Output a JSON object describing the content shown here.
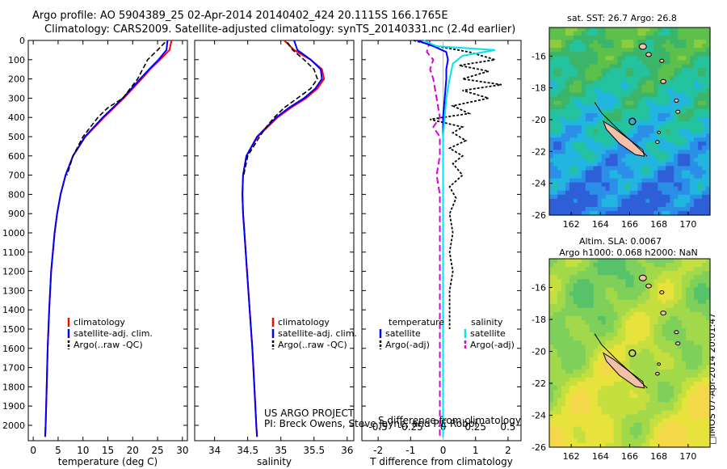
{
  "header": {
    "title_line1": "Argo profile: AO 5904389_25 02-Apr-2014 20140402_424 20.1115S 166.1765E",
    "title_line2": "Climatology: CARS2009. Satellite-adjusted climatology: synTS_20140331.nc (2.4d earlier)"
  },
  "credits": {
    "project": "US ARGO PROJECT",
    "pi": "PI: Breck Owens, Steve Jayne, and P.E Robbi"
  },
  "stamp": "□IMOS 07-Apr-2014 20:01:47",
  "colors": {
    "climatology": "#ff0000",
    "satellite_adj": "#0000ff",
    "argo": "#000000",
    "diff_t_sat": "#0000ff",
    "diff_s_sat": "#00e5ee",
    "diff_s_argo": "#dd00dd",
    "sst_map": "#34b26a",
    "sla_map": "#9ad24a",
    "land": "#f5c0a8"
  },
  "chart_data": [
    {
      "id": "temperature",
      "type": "line",
      "xlabel": "temperature (deg C)",
      "ylabel": "",
      "xlim": [
        -1,
        31
      ],
      "ylim": [
        2080,
        0
      ],
      "xticks": [
        0,
        5,
        10,
        15,
        20,
        25,
        30
      ],
      "yticks": [
        0,
        100,
        200,
        300,
        400,
        500,
        600,
        700,
        800,
        900,
        1000,
        1100,
        1200,
        1300,
        1400,
        1500,
        1600,
        1700,
        1800,
        1900,
        2000
      ],
      "legend": [
        "climatology",
        "satellite-adj. clim.",
        "Argo(..raw -QC)"
      ],
      "series": [
        {
          "name": "climatology",
          "color_key": "climatology",
          "depth": [
            0,
            50,
            100,
            150,
            200,
            300,
            400,
            500,
            600,
            700,
            800,
            900,
            1000,
            1200,
            1400,
            1600,
            1800,
            2000,
            2060
          ],
          "values": [
            27.8,
            27.4,
            25.5,
            23.5,
            21.8,
            18.2,
            14.2,
            10.5,
            8.0,
            6.5,
            5.5,
            4.8,
            4.3,
            3.6,
            3.2,
            2.9,
            2.7,
            2.5,
            2.4
          ]
        },
        {
          "name": "satellite-adj. clim.",
          "color_key": "satellite_adj",
          "depth": [
            0,
            50,
            100,
            150,
            200,
            300,
            400,
            500,
            600,
            700,
            800,
            900,
            1000,
            1200,
            1400,
            1600,
            1800,
            2000,
            2060
          ],
          "values": [
            27.0,
            26.8,
            25.2,
            23.3,
            21.5,
            18.0,
            14.0,
            10.4,
            8.0,
            6.5,
            5.5,
            4.8,
            4.3,
            3.6,
            3.2,
            2.9,
            2.7,
            2.5,
            2.4
          ]
        },
        {
          "name": "Argo(..raw -QC)",
          "color_key": "argo",
          "depth": [
            10,
            50,
            100,
            150,
            200,
            250,
            300,
            350,
            400,
            450,
            500,
            550,
            600,
            700
          ],
          "values": [
            26.5,
            25.0,
            23.0,
            22.0,
            21.0,
            19.5,
            18.0,
            15.0,
            13.0,
            11.5,
            10.0,
            9.0,
            8.0,
            6.8
          ]
        }
      ]
    },
    {
      "id": "salinity",
      "type": "line",
      "xlabel": "salinity",
      "ylabel": "",
      "xlim": [
        33.7,
        36.1
      ],
      "ylim": [
        2080,
        0
      ],
      "xticks": [
        34,
        34.5,
        35,
        35.5,
        36
      ],
      "legend": [
        "climatology",
        "satellite-adj. clim.",
        "Argo(..raw -QC)"
      ],
      "series": [
        {
          "name": "climatology",
          "color_key": "climatology",
          "depth": [
            0,
            50,
            100,
            150,
            200,
            250,
            300,
            350,
            400,
            500,
            600,
            700,
            800,
            900,
            1000,
            1200,
            1400,
            1600,
            1800,
            2000,
            2060
          ],
          "values": [
            35.05,
            35.2,
            35.45,
            35.62,
            35.65,
            35.55,
            35.38,
            35.15,
            34.95,
            34.65,
            34.48,
            34.43,
            34.42,
            34.43,
            34.45,
            34.49,
            34.53,
            34.57,
            34.6,
            34.63,
            34.64
          ]
        },
        {
          "name": "satellite-adj. clim.",
          "color_key": "satellite_adj",
          "depth": [
            0,
            50,
            100,
            150,
            200,
            250,
            300,
            350,
            400,
            500,
            600,
            700,
            800,
            900,
            1000,
            1200,
            1400,
            1600,
            1800,
            2000,
            2060
          ],
          "values": [
            35.2,
            35.25,
            35.45,
            35.6,
            35.62,
            35.52,
            35.35,
            35.12,
            34.93,
            34.64,
            34.48,
            34.43,
            34.42,
            34.43,
            34.45,
            34.49,
            34.53,
            34.57,
            34.6,
            34.63,
            34.64
          ]
        },
        {
          "name": "Argo(..raw -QC)",
          "color_key": "argo",
          "depth": [
            10,
            50,
            100,
            150,
            200,
            250,
            300,
            350,
            400,
            450,
            500,
            600,
            700
          ],
          "values": [
            35.1,
            35.18,
            35.35,
            35.5,
            35.55,
            35.45,
            35.25,
            35.05,
            34.9,
            34.78,
            34.68,
            34.5,
            34.44
          ]
        }
      ]
    },
    {
      "id": "difference",
      "type": "line",
      "xlabel": "T difference from climatology",
      "top_label": "S difference from climatology",
      "xlim": [
        -2.5,
        2.4
      ],
      "ylim": [
        2080,
        0
      ],
      "xticks": [
        -2,
        -1,
        0,
        1,
        2
      ],
      "top_ticks": [
        "-0.5",
        "-0.25",
        "0",
        "0.25",
        "0.5"
      ],
      "legend_headers": [
        "temperature",
        "salinity"
      ],
      "legend": [
        "satellite",
        "Argo(-adj)",
        "satellite",
        "Argo(-adj)"
      ],
      "series": [
        {
          "name": "satellite (temperature)",
          "color_key": "diff_t_sat",
          "depth": [
            0,
            30,
            60,
            100,
            150,
            200,
            300,
            400,
            500,
            600,
            800,
            1000,
            1500,
            2060
          ],
          "values": [
            -0.8,
            -0.3,
            0.1,
            0.15,
            0.1,
            0.1,
            0.05,
            0.0,
            0.0,
            0.0,
            0.0,
            0.0,
            0.0,
            0.0
          ]
        },
        {
          "name": "satellite (salinity)",
          "color_key": "diff_s_sat",
          "depth": [
            0,
            30,
            50,
            80,
            120,
            200,
            300,
            400,
            500,
            600,
            800,
            1000,
            1500,
            2060
          ],
          "values": [
            -0.6,
            -0.2,
            1.6,
            0.6,
            0.3,
            0.2,
            0.1,
            0.05,
            0.0,
            0.0,
            0.0,
            0.0,
            0.0,
            0.0
          ]
        },
        {
          "name": "Argo(-adj) (temperature)",
          "color_key": "argo",
          "depth": [
            0,
            30,
            60,
            100,
            130,
            160,
            200,
            230,
            260,
            300,
            340,
            380,
            410,
            450,
            480,
            520,
            560,
            600,
            640,
            700,
            760,
            820,
            900,
            1000,
            1100,
            1200,
            1300,
            1400,
            1500
          ],
          "values": [
            -0.9,
            -0.2,
            0.8,
            1.6,
            0.5,
            1.4,
            0.6,
            1.8,
            0.6,
            1.4,
            0.3,
            0.8,
            -0.4,
            0.6,
            0.3,
            0.7,
            0.2,
            0.6,
            0.3,
            0.6,
            0.2,
            0.4,
            0.2,
            0.3,
            0.2,
            0.3,
            0.2,
            0.2,
            0.2
          ]
        },
        {
          "name": "Argo(-adj) (salinity)",
          "color_key": "diff_s_argo",
          "depth": [
            0,
            60,
            100,
            150,
            200,
            300,
            400,
            450,
            500,
            600,
            700,
            800,
            1000,
            1500,
            2060
          ],
          "values": [
            -0.4,
            -0.5,
            -0.3,
            -0.4,
            -0.3,
            -0.2,
            -0.1,
            -0.3,
            -0.1,
            -0.1,
            -0.2,
            -0.1,
            -0.1,
            -0.1,
            -0.1
          ]
        }
      ]
    },
    {
      "id": "sst_map",
      "type": "heatmap",
      "title": "sat. SST: 26.7  Argo: 26.8",
      "xlim": [
        160.5,
        171.5
      ],
      "ylim": [
        -26,
        -14.2
      ],
      "xticks": [
        162,
        164,
        166,
        168,
        170
      ],
      "yticks": [
        -16,
        -18,
        -20,
        -22,
        -24,
        -26
      ],
      "float_position": {
        "lon": 166.18,
        "lat": -20.11
      }
    },
    {
      "id": "sla_map",
      "type": "heatmap",
      "title_line1": "Altim. SLA: 0.0067",
      "title_line2": "Argo h1000: 0.068  h2000: NaN",
      "xlim": [
        160.5,
        171.5
      ],
      "ylim": [
        -26,
        -14.2
      ],
      "xticks": [
        162,
        164,
        166,
        168,
        170
      ],
      "yticks": [
        -16,
        -18,
        -20,
        -22,
        -24,
        -26
      ],
      "float_position": {
        "lon": 166.18,
        "lat": -20.11
      }
    }
  ]
}
